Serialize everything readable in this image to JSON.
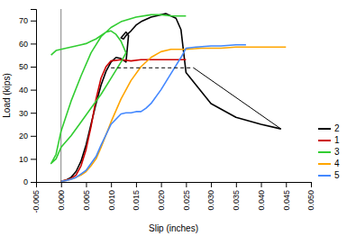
{
  "chart_data": {
    "type": "line",
    "xlabel": "Slip (inches)",
    "ylabel": "Load (kips)",
    "xlim": [
      -0.005,
      0.05
    ],
    "ylim": [
      0,
      75
    ],
    "xticks": [
      -0.005,
      {
        "value": 0.0,
        "label": "0.000"
      },
      0.005,
      {
        "value": 0.01,
        "label": "0.010"
      },
      0.015,
      {
        "value": 0.02,
        "label": "0.020"
      },
      0.025,
      {
        "value": 0.03,
        "label": "0.030"
      },
      0.035,
      {
        "value": 0.04,
        "label": "0.040"
      },
      0.045,
      {
        "value": 0.05,
        "label": "0.050"
      }
    ],
    "yticks": [
      0,
      10,
      20,
      30,
      40,
      50,
      60,
      70
    ],
    "grid": false,
    "legend": "lower right",
    "series": [
      {
        "name": "2",
        "color": "#000000",
        "x": [
          0.0,
          0.001,
          0.002,
          0.003,
          0.004,
          0.005,
          0.006,
          0.007,
          0.008,
          0.009,
          0.01,
          0.011,
          0.012,
          0.013,
          0.0135,
          0.013,
          0.012,
          0.0125,
          0.013,
          0.014,
          0.015,
          0.016,
          0.017,
          0.018,
          0.019,
          0.02,
          0.021,
          0.022,
          0.023,
          0.024,
          0.025,
          0.03,
          0.035,
          0.04,
          0.044
        ],
        "values": [
          0.3,
          0.8,
          2.0,
          4.5,
          9.0,
          16.0,
          25.0,
          34.0,
          42.0,
          48.0,
          52.0,
          54.0,
          53.5,
          52.0,
          63.5,
          65.0,
          62.5,
          62.0,
          63.5,
          65.5,
          68.0,
          69.5,
          70.5,
          71.5,
          72.0,
          72.5,
          73.0,
          72.0,
          71.0,
          66.0,
          47.5,
          34.0,
          28.0,
          25.0,
          23.0
        ]
      },
      {
        "name": "1",
        "color": "#cc0000",
        "x": [
          0.0,
          0.001,
          0.002,
          0.003,
          0.004,
          0.005,
          0.006,
          0.007,
          0.008,
          0.009,
          0.01,
          0.012,
          0.014,
          0.016,
          0.018,
          0.02,
          0.022,
          0.025
        ],
        "values": [
          0.3,
          0.8,
          1.5,
          3.0,
          7.0,
          14.0,
          24.0,
          36.0,
          45.0,
          50.0,
          52.5,
          53.0,
          52.5,
          53.0,
          53.0,
          53.0,
          53.0,
          53.0
        ]
      },
      {
        "name": "3",
        "color": "#32CD32",
        "x": [
          -0.002,
          -0.001,
          0.0,
          0.001,
          0.002,
          0.003,
          0.004,
          0.005,
          0.006,
          0.007,
          0.008,
          0.009,
          0.01,
          0.011,
          0.012,
          0.013,
          0.012,
          0.01,
          0.008,
          0.006,
          0.004,
          0.002,
          0.0,
          -0.001,
          -0.002,
          -0.001,
          0.0,
          0.002,
          0.004,
          0.006,
          0.008,
          0.01,
          0.012,
          0.015,
          0.018,
          0.02,
          0.022,
          0.025
        ],
        "values": [
          55.0,
          57.0,
          57.5,
          58.0,
          58.5,
          59.0,
          59.5,
          60.0,
          61.0,
          62.0,
          63.5,
          65.0,
          65.5,
          64.0,
          61.0,
          56.0,
          52.0,
          45.0,
          38.0,
          32.0,
          26.0,
          20.0,
          15.0,
          10.0,
          8.0,
          12.0,
          22.0,
          35.0,
          46.0,
          56.0,
          63.0,
          67.0,
          69.5,
          71.5,
          72.5,
          72.5,
          72.0,
          72.0
        ]
      },
      {
        "name": "4",
        "color": "#FFA500",
        "x": [
          0.0,
          0.001,
          0.002,
          0.003,
          0.004,
          0.005,
          0.006,
          0.007,
          0.008,
          0.01,
          0.012,
          0.014,
          0.016,
          0.018,
          0.02,
          0.022,
          0.025,
          0.028,
          0.03,
          0.032,
          0.035,
          0.038,
          0.04,
          0.042,
          0.045
        ],
        "values": [
          0.3,
          0.6,
          1.2,
          2.0,
          3.0,
          4.5,
          7.0,
          10.0,
          15.0,
          26.0,
          36.0,
          44.0,
          50.0,
          54.0,
          56.5,
          57.5,
          57.5,
          58.0,
          58.0,
          58.0,
          58.5,
          58.5,
          58.5,
          58.5,
          58.5
        ]
      },
      {
        "name": "5",
        "color": "#4488FF",
        "x": [
          0.0,
          0.001,
          0.002,
          0.003,
          0.004,
          0.005,
          0.006,
          0.007,
          0.008,
          0.01,
          0.012,
          0.013,
          0.014,
          0.015,
          0.016,
          0.017,
          0.018,
          0.02,
          0.022,
          0.024,
          0.025,
          0.027,
          0.03,
          0.032,
          0.035,
          0.037
        ],
        "values": [
          0.3,
          0.6,
          1.2,
          2.0,
          3.5,
          5.0,
          8.0,
          11.0,
          16.0,
          25.0,
          29.5,
          30.0,
          30.0,
          30.5,
          30.5,
          32.0,
          34.0,
          40.0,
          47.0,
          54.0,
          58.0,
          58.5,
          59.0,
          59.0,
          59.5,
          59.5
        ]
      }
    ],
    "vlines": [
      {
        "x": 0.0,
        "color": "gray"
      }
    ],
    "lines": [
      {
        "x": [
          0.01,
          0.0265
        ],
        "y": [
          49.5,
          49.5
        ],
        "color": "#000000",
        "line_style": "dashed"
      },
      {
        "x": [
          0.0265,
          0.044
        ],
        "y": [
          49.5,
          23
        ],
        "color": "#000000",
        "line_style": "solid"
      }
    ]
  }
}
